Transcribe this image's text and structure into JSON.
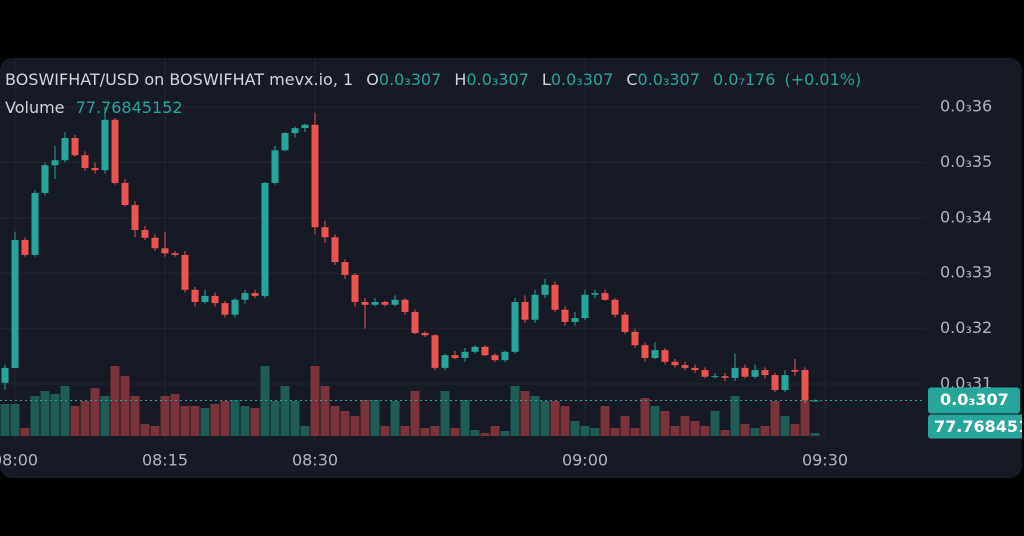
{
  "chart_data": {
    "type": "candlestick",
    "header": {
      "symbol": "BOSWIFHAT/USD on BOSWIFHAT mevx.io, 1",
      "ohlc": [
        {
          "label": "O",
          "value": "0.0₃307"
        },
        {
          "label": "H",
          "value": "0.0₃307"
        },
        {
          "label": "L",
          "value": "0.0₃307"
        },
        {
          "label": "C",
          "value": "0.0₃307"
        }
      ],
      "change": "0.0₇176",
      "change_percent": "(+0.01%)",
      "volume_label": "Volume",
      "volume_value": "77.76845152"
    },
    "last_price_tag": "0.0₃307",
    "volume_tag": "77.76845152",
    "up_color": "#26a69a",
    "down_color": "#ef5350",
    "volume_up_color": "#1f5c55",
    "volume_down_color": "#7a323b",
    "ylim": [
      0.0003006,
      0.0003685
    ],
    "yticks": [
      {
        "value": 0.00036,
        "label": "0.0₃36"
      },
      {
        "value": 0.00035,
        "label": "0.0₃35"
      },
      {
        "value": 0.00034,
        "label": "0.0₃34"
      },
      {
        "value": 0.00033,
        "label": "0.0₃33"
      },
      {
        "value": 0.00032,
        "label": "0.0₃32"
      },
      {
        "value": 0.00031,
        "label": "0.0₃31"
      }
    ],
    "xticks": [
      "08:00",
      "08:15",
      "08:30",
      "09:00",
      "09:30"
    ],
    "grid": true,
    "x": [
      "07:59",
      "08:00",
      "08:01",
      "08:02",
      "08:03",
      "08:04",
      "08:05",
      "08:06",
      "08:07",
      "08:08",
      "08:09",
      "08:10",
      "08:11",
      "08:12",
      "08:13",
      "08:14",
      "08:15",
      "08:16",
      "08:17",
      "08:18",
      "08:19",
      "08:20",
      "08:21",
      "08:22",
      "08:23",
      "08:24",
      "08:25",
      "08:26",
      "08:27",
      "08:28",
      "08:29",
      "08:30",
      "08:31",
      "08:32",
      "08:33",
      "08:34",
      "08:35",
      "08:39",
      "08:40",
      "08:41",
      "08:42",
      "08:43",
      "08:44",
      "08:45",
      "08:46",
      "08:47",
      "08:48",
      "08:49",
      "08:50",
      "08:51",
      "08:52",
      "08:53",
      "08:54",
      "08:55",
      "08:56",
      "08:57",
      "08:58",
      "08:59",
      "09:00",
      "09:01",
      "09:02",
      "09:03",
      "09:04",
      "09:05",
      "09:06",
      "09:07",
      "09:08",
      "09:09",
      "09:10",
      "09:11",
      "09:12",
      "09:19",
      "09:20",
      "09:21",
      "09:22",
      "09:23",
      "09:24",
      "09:25",
      "09:26",
      "09:27",
      "09:28",
      "09:29"
    ],
    "ohlc": [
      [
        0.0003102,
        0.0003135,
        0.000309,
        0.0003129
      ],
      [
        0.0003129,
        0.0003375,
        0.0003129,
        0.000336
      ],
      [
        0.000336,
        0.0003365,
        0.000333,
        0.0003333
      ],
      [
        0.0003333,
        0.000345,
        0.000333,
        0.0003445
      ],
      [
        0.0003445,
        0.00035,
        0.000344,
        0.0003495
      ],
      [
        0.0003495,
        0.000353,
        0.000347,
        0.0003504
      ],
      [
        0.0003504,
        0.0003555,
        0.00035,
        0.0003544
      ],
      [
        0.0003544,
        0.000355,
        0.000351,
        0.0003513
      ],
      [
        0.0003513,
        0.000352,
        0.0003485,
        0.000349
      ],
      [
        0.000349,
        0.00035,
        0.000348,
        0.0003486
      ],
      [
        0.0003486,
        0.00036,
        0.000348,
        0.0003577
      ],
      [
        0.0003577,
        0.000358,
        0.000346,
        0.0003463
      ],
      [
        0.0003463,
        0.000347,
        0.000342,
        0.0003423
      ],
      [
        0.0003423,
        0.000343,
        0.0003365,
        0.0003378
      ],
      [
        0.0003378,
        0.0003385,
        0.000336,
        0.0003364
      ],
      [
        0.0003364,
        0.000337,
        0.000334,
        0.0003345
      ],
      [
        0.0003345,
        0.0003375,
        0.000333,
        0.0003336
      ],
      [
        0.0003336,
        0.000334,
        0.000333,
        0.0003333
      ],
      [
        0.0003333,
        0.000334,
        0.0003265,
        0.000327
      ],
      [
        0.000327,
        0.0003275,
        0.000324,
        0.0003248
      ],
      [
        0.0003248,
        0.000327,
        0.0003245,
        0.0003259
      ],
      [
        0.0003259,
        0.0003265,
        0.000324,
        0.0003246
      ],
      [
        0.0003246,
        0.000325,
        0.000322,
        0.0003225
      ],
      [
        0.0003225,
        0.0003255,
        0.000322,
        0.0003252
      ],
      [
        0.0003252,
        0.000327,
        0.0003245,
        0.0003264
      ],
      [
        0.0003264,
        0.000327,
        0.0003255,
        0.0003259
      ],
      [
        0.0003259,
        0.0003465,
        0.0003255,
        0.0003463
      ],
      [
        0.0003463,
        0.000353,
        0.000346,
        0.0003522
      ],
      [
        0.0003522,
        0.0003555,
        0.000352,
        0.0003553
      ],
      [
        0.0003553,
        0.0003565,
        0.0003545,
        0.0003562
      ],
      [
        0.0003562,
        0.000357,
        0.0003555,
        0.0003568
      ],
      [
        0.0003568,
        0.000359,
        0.000337,
        0.0003383
      ],
      [
        0.0003383,
        0.0003395,
        0.0003355,
        0.0003365
      ],
      [
        0.0003365,
        0.000337,
        0.0003315,
        0.000332
      ],
      [
        0.000332,
        0.0003325,
        0.000329,
        0.0003297
      ],
      [
        0.0003297,
        0.00033,
        0.000324,
        0.0003248
      ],
      [
        0.0003248,
        0.0003255,
        0.00032,
        0.0003243
      ],
      [
        0.0003243,
        0.0003255,
        0.000324,
        0.0003248
      ],
      [
        0.0003248,
        0.000325,
        0.000324,
        0.0003243
      ],
      [
        0.0003243,
        0.000326,
        0.000324,
        0.0003252
      ],
      [
        0.0003252,
        0.0003255,
        0.0003225,
        0.000323
      ],
      [
        0.000323,
        0.0003235,
        0.000319,
        0.0003192
      ],
      [
        0.0003192,
        0.0003195,
        0.0003185,
        0.0003188
      ],
      [
        0.0003188,
        0.000319,
        0.0003125,
        0.0003129
      ],
      [
        0.0003129,
        0.0003155,
        0.0003125,
        0.0003152
      ],
      [
        0.0003152,
        0.000316,
        0.0003145,
        0.0003147
      ],
      [
        0.0003147,
        0.0003165,
        0.000314,
        0.0003158
      ],
      [
        0.0003158,
        0.000317,
        0.0003155,
        0.0003167
      ],
      [
        0.0003167,
        0.000317,
        0.000315,
        0.0003152
      ],
      [
        0.0003152,
        0.0003155,
        0.000314,
        0.0003143
      ],
      [
        0.0003143,
        0.000316,
        0.000314,
        0.0003158
      ],
      [
        0.0003158,
        0.0003255,
        0.0003155,
        0.0003248
      ],
      [
        0.0003248,
        0.000326,
        0.000321,
        0.0003216
      ],
      [
        0.0003216,
        0.000327,
        0.000321,
        0.0003261
      ],
      [
        0.0003261,
        0.000329,
        0.0003255,
        0.0003279
      ],
      [
        0.0003279,
        0.0003285,
        0.000323,
        0.0003234
      ],
      [
        0.0003234,
        0.000324,
        0.0003205,
        0.0003212
      ],
      [
        0.0003212,
        0.000323,
        0.0003205,
        0.0003219
      ],
      [
        0.0003219,
        0.000327,
        0.0003215,
        0.0003261
      ],
      [
        0.0003261,
        0.000327,
        0.0003255,
        0.0003264
      ],
      [
        0.0003264,
        0.000327,
        0.000325,
        0.0003252
      ],
      [
        0.0003252,
        0.0003255,
        0.000322,
        0.0003225
      ],
      [
        0.0003225,
        0.000323,
        0.000319,
        0.0003194
      ],
      [
        0.0003194,
        0.00032,
        0.0003165,
        0.000317
      ],
      [
        0.000317,
        0.0003175,
        0.000314,
        0.0003147
      ],
      [
        0.0003147,
        0.0003175,
        0.0003145,
        0.0003161
      ],
      [
        0.0003161,
        0.0003165,
        0.0003135,
        0.000314
      ],
      [
        0.000314,
        0.0003145,
        0.000313,
        0.0003134
      ],
      [
        0.0003134,
        0.000314,
        0.0003125,
        0.0003129
      ],
      [
        0.0003129,
        0.0003135,
        0.000312,
        0.0003125
      ],
      [
        0.0003125,
        0.000313,
        0.000311,
        0.0003113
      ],
      [
        0.0003113,
        0.000312,
        0.000311,
        0.0003114
      ],
      [
        0.0003114,
        0.000312,
        0.0003105,
        0.0003111
      ],
      [
        0.0003111,
        0.0003155,
        0.0003105,
        0.0003129
      ],
      [
        0.0003129,
        0.0003135,
        0.000311,
        0.0003113
      ],
      [
        0.0003113,
        0.0003135,
        0.000311,
        0.0003125
      ],
      [
        0.0003125,
        0.000313,
        0.000311,
        0.0003116
      ],
      [
        0.0003116,
        0.000312,
        0.0003085,
        0.0003089
      ],
      [
        0.0003089,
        0.0003125,
        0.0003085,
        0.0003116
      ],
      [
        0.0003125,
        0.0003145,
        0.0003115,
        0.0003122
      ],
      [
        0.0003125,
        0.000313,
        0.0003065,
        0.000307
      ],
      [
        0.000307,
        0.0003072,
        0.0003068,
        0.000307
      ]
    ],
    "volume": {
      "name": "Volume",
      "values": [
        832,
        832,
        208,
        1040,
        1170,
        1092,
        1300,
        780,
        910,
        1248,
        1040,
        1820,
        1560,
        1040,
        312,
        260,
        1040,
        1092,
        780,
        780,
        728,
        832,
        910,
        936,
        780,
        728,
        1820,
        910,
        1300,
        910,
        260,
        1820,
        1300,
        780,
        650,
        520,
        936,
        936,
        260,
        910,
        260,
        1170,
        208,
        260,
        1170,
        208,
        936,
        156,
        78,
        260,
        130,
        1300,
        1170,
        1040,
        910,
        910,
        780,
        390,
        260,
        208,
        780,
        208,
        520,
        208,
        988,
        780,
        650,
        260,
        520,
        390,
        260,
        650,
        156,
        1040,
        312,
        208,
        260,
        910,
        520,
        312,
        910,
        77.76845152
      ]
    }
  }
}
